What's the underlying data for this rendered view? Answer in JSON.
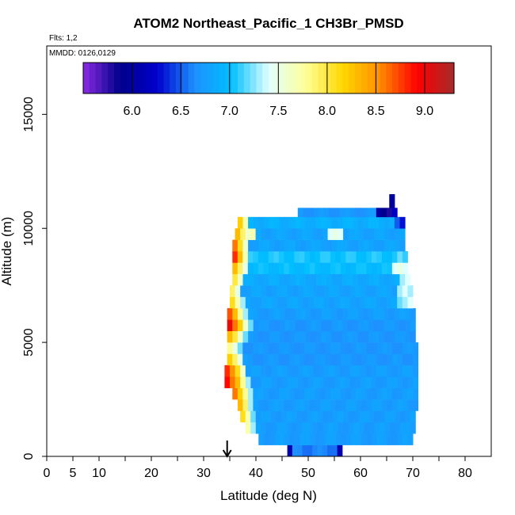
{
  "chart_data": {
    "type": "heatmap",
    "title": "ATOM2 Northeast_Pacific_1 CH3Br_PMSD",
    "flights_note": "Flts: 1,2",
    "date_note": "MMDD: 0126,0129",
    "xlabel": "Latitude (deg N)",
    "ylabel": "Altitude (m)",
    "xlim": [
      0,
      85
    ],
    "ylim": [
      0,
      18000
    ],
    "x_ticks": [
      0,
      5,
      10,
      20,
      30,
      40,
      50,
      60,
      70,
      80
    ],
    "x_minor_ticks": [
      15,
      25,
      35,
      45,
      55,
      65,
      75
    ],
    "y_ticks": [
      0,
      5000,
      10000,
      15000
    ],
    "arrow_marker": {
      "latitude": 34.5
    },
    "colorbar": {
      "range": [
        5.5,
        9.3
      ],
      "ticks": [
        6.0,
        6.5,
        7.0,
        7.5,
        8.0,
        8.5,
        9.0
      ],
      "tick_labels": [
        "6.0",
        "6.5",
        "7.0",
        "7.5",
        "8.0",
        "8.5",
        "9.0"
      ],
      "palette": [
        "#8a2be2",
        "#00008b",
        "#0000cd",
        "#1e90ff",
        "#00bfff",
        "#e0ffff",
        "#ffff99",
        "#ffd700",
        "#ff8c00",
        "#ff0000",
        "#a52a2a"
      ]
    },
    "bands": [
      {
        "alt_lo": 0,
        "alt_hi": 500,
        "lat_lo": 46,
        "lat_hi": 56.5,
        "edge_values": [],
        "base": 6.6,
        "end_dark": true
      },
      {
        "alt_lo": 500,
        "alt_hi": 1000,
        "lat_lo": 40.5,
        "lat_hi": 70,
        "edge_values": [],
        "base": 6.75
      },
      {
        "alt_lo": 1000,
        "alt_hi": 1500,
        "lat_lo": 38,
        "lat_hi": 70.5,
        "edge_values": [
          7.7,
          7.3
        ],
        "base": 6.75
      },
      {
        "alt_lo": 1500,
        "alt_hi": 2000,
        "lat_lo": 37,
        "lat_hi": 70.5,
        "edge_values": [
          8.1,
          7.7,
          7.2
        ],
        "base": 6.75
      },
      {
        "alt_lo": 2000,
        "alt_hi": 2500,
        "lat_lo": 36.5,
        "lat_hi": 71,
        "edge_values": [
          8.3,
          7.9,
          7.3
        ],
        "base": 6.75
      },
      {
        "alt_lo": 2500,
        "alt_hi": 3000,
        "lat_lo": 35.5,
        "lat_hi": 71,
        "edge_values": [
          8.6,
          8.2,
          7.8,
          7.3
        ],
        "base": 6.75
      },
      {
        "alt_lo": 3000,
        "alt_hi": 3500,
        "lat_lo": 34,
        "lat_hi": 71,
        "edge_values": [
          8.9,
          8.6,
          8.3,
          7.8,
          7.3
        ],
        "base": 6.75
      },
      {
        "alt_lo": 3500,
        "alt_hi": 4000,
        "lat_lo": 34,
        "lat_hi": 71,
        "edge_values": [
          8.8,
          8.5,
          8.1,
          7.6
        ],
        "base": 6.75
      },
      {
        "alt_lo": 4000,
        "alt_hi": 4500,
        "lat_lo": 34.5,
        "lat_hi": 71,
        "edge_values": [
          8.2,
          7.9,
          7.5
        ],
        "base": 6.7
      },
      {
        "alt_lo": 4500,
        "alt_hi": 5000,
        "lat_lo": 34.5,
        "lat_hi": 71,
        "edge_values": [
          7.8,
          7.5,
          7.2
        ],
        "base": 6.7
      },
      {
        "alt_lo": 5000,
        "alt_hi": 5500,
        "lat_lo": 34.5,
        "lat_hi": 70.5,
        "edge_values": [
          8.3,
          8.0,
          7.6,
          7.2
        ],
        "base": 6.7
      },
      {
        "alt_lo": 5500,
        "alt_hi": 6000,
        "lat_lo": 34.5,
        "lat_hi": 70.5,
        "edge_values": [
          9.0,
          8.6,
          8.2,
          7.6,
          7.2
        ],
        "base": 6.7
      },
      {
        "alt_lo": 6000,
        "alt_hi": 6500,
        "lat_lo": 34.5,
        "lat_hi": 70.5,
        "edge_values": [
          8.7,
          8.3,
          7.8,
          7.3
        ],
        "base": 6.75
      },
      {
        "alt_lo": 6500,
        "alt_hi": 7000,
        "lat_lo": 35,
        "lat_hi": 70,
        "edge_values": [
          8.1,
          7.7,
          7.3
        ],
        "base": 6.8,
        "right_values": [
          7.2,
          7.3,
          7.4
        ]
      },
      {
        "alt_lo": 7000,
        "alt_hi": 7500,
        "lat_lo": 35,
        "lat_hi": 70,
        "edge_values": [
          7.9,
          7.5
        ],
        "base": 6.8,
        "right_values": [
          7.3,
          7.4,
          7.3
        ]
      },
      {
        "alt_lo": 7500,
        "alt_hi": 8000,
        "lat_lo": 35.5,
        "lat_hi": 69.5,
        "edge_values": [
          8.0,
          7.6
        ],
        "base": 6.85,
        "right_values": [
          7.3,
          7.4
        ]
      },
      {
        "alt_lo": 8000,
        "alt_hi": 8500,
        "lat_lo": 35.5,
        "lat_hi": 69,
        "edge_values": [
          8.3,
          7.9,
          7.5
        ],
        "base": 7.0,
        "right_values": [
          7.4,
          7.5,
          7.4
        ]
      },
      {
        "alt_lo": 8500,
        "alt_hi": 9000,
        "lat_lo": 35.5,
        "lat_hi": 69,
        "edge_values": [
          8.8,
          8.3,
          7.7
        ],
        "base": 7.05,
        "right_values": [
          7.2,
          7.1
        ]
      },
      {
        "alt_lo": 9000,
        "alt_hi": 9500,
        "lat_lo": 35.5,
        "lat_hi": 68.5,
        "edge_values": [
          8.6,
          8.1,
          7.6
        ],
        "base": 6.8
      },
      {
        "alt_lo": 9500,
        "alt_hi": 10000,
        "lat_lo": 36,
        "lat_hi": 68.5,
        "edge_values": [
          8.3,
          7.9,
          7.6,
          7.7
        ],
        "base": 6.8,
        "mid_values": [
          7.4,
          7.5,
          7.4
        ]
      },
      {
        "alt_lo": 10000,
        "alt_hi": 10500,
        "lat_lo": 36.5,
        "lat_hi": 68.5,
        "edge_values": [
          8.2,
          7.7
        ],
        "base": 6.9,
        "right_values": [
          6.5,
          6.3
        ]
      },
      {
        "alt_lo": 10500,
        "alt_hi": 10900,
        "lat_lo": 48,
        "lat_hi": 67,
        "edge_values": [],
        "base": 6.7,
        "right_values": [
          6.0,
          5.9,
          5.8,
          6.2
        ]
      },
      {
        "alt_lo": 10900,
        "alt_hi": 11500,
        "lat_lo": 65.5,
        "lat_hi": 66.5,
        "edge_values": [],
        "base": 6.0
      }
    ]
  }
}
